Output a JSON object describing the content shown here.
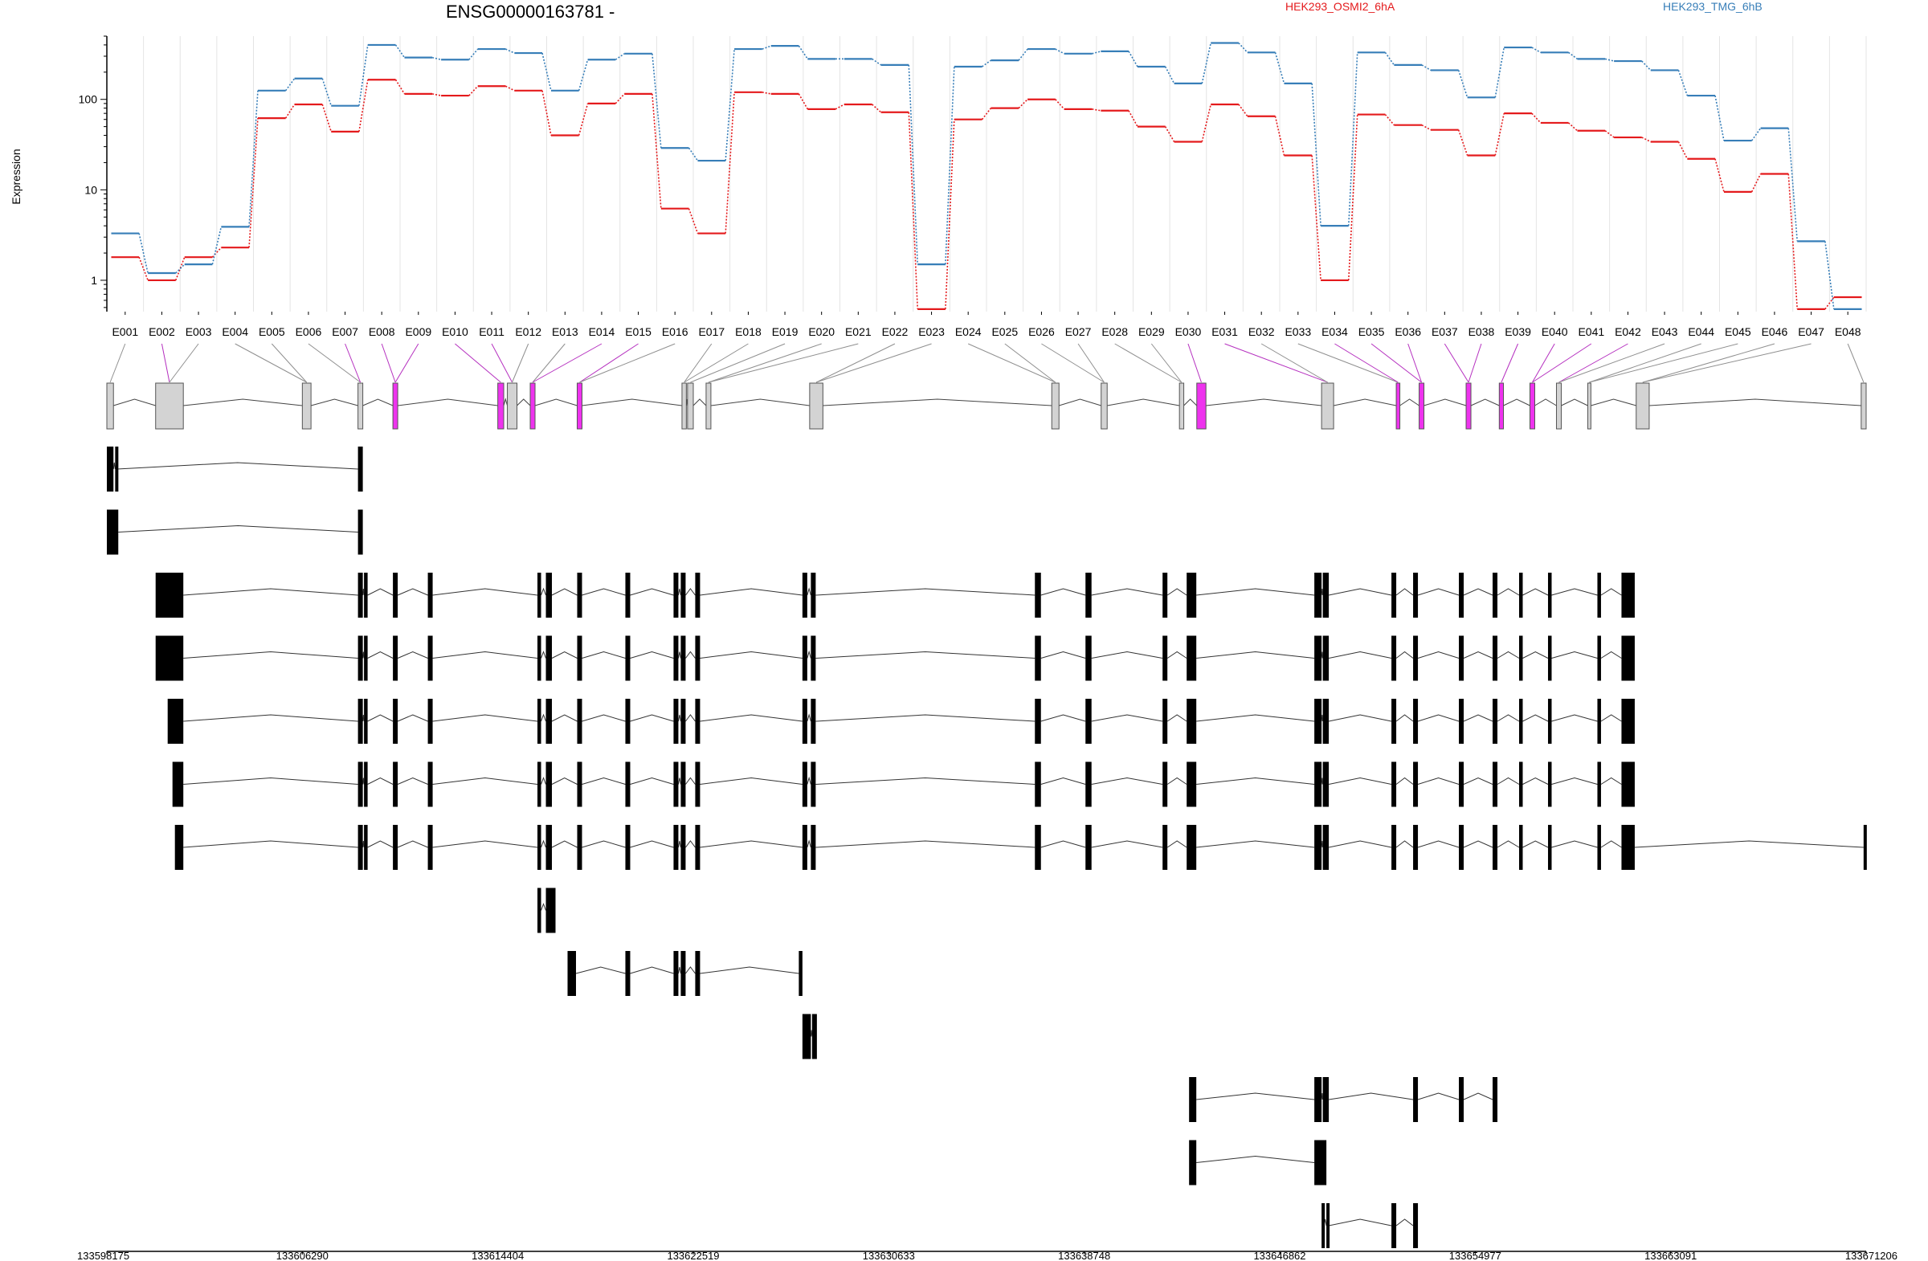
{
  "chart_data": {
    "type": "line",
    "title": "ENSG00000163781 -",
    "ylabel": "Expression",
    "yscale": "log",
    "ylim": [
      0.45,
      500
    ],
    "yticks": [
      1,
      10,
      100
    ],
    "ytick_labels": [
      "1",
      "10",
      "100"
    ],
    "grid": "vertical",
    "legend_position": "top-right",
    "exons": [
      "E001",
      "E002",
      "E003",
      "E004",
      "E005",
      "E006",
      "E007",
      "E008",
      "E009",
      "E010",
      "E011",
      "E012",
      "E013",
      "E014",
      "E015",
      "E016",
      "E017",
      "E018",
      "E019",
      "E020",
      "E021",
      "E022",
      "E023",
      "E024",
      "E025",
      "E026",
      "E027",
      "E028",
      "E029",
      "E030",
      "E031",
      "E032",
      "E033",
      "E034",
      "E035",
      "E036",
      "E037",
      "E038",
      "E039",
      "E040",
      "E041",
      "E042",
      "E043",
      "E044",
      "E045",
      "E046",
      "E047",
      "E048"
    ],
    "series": [
      {
        "name": "HEK293_OSMI2_6hA",
        "color": "#e41a1c",
        "values": [
          1.8,
          1.0,
          1.8,
          2.3,
          62,
          88,
          44,
          165,
          115,
          110,
          140,
          125,
          40,
          90,
          115,
          6.2,
          3.3,
          120,
          115,
          78,
          88,
          72,
          0.48,
          60,
          80,
          100,
          78,
          75,
          50,
          34,
          88,
          65,
          24,
          1.0,
          68,
          52,
          46,
          24,
          70,
          55,
          45,
          38,
          34,
          22,
          9.5,
          15,
          0.48,
          0.65
        ]
      },
      {
        "name": "HEK293_TMG_6hB",
        "color": "#377eb8",
        "values": [
          3.3,
          1.2,
          1.5,
          3.9,
          125,
          170,
          85,
          400,
          290,
          275,
          360,
          325,
          125,
          275,
          320,
          29,
          21,
          360,
          390,
          280,
          280,
          240,
          1.5,
          230,
          270,
          360,
          320,
          340,
          230,
          150,
          420,
          330,
          150,
          4.0,
          330,
          240,
          210,
          105,
          375,
          330,
          280,
          265,
          210,
          110,
          35,
          48,
          2.7,
          0.48
        ]
      }
    ],
    "gene_model": {
      "chrom_start": 133598175,
      "chrom_end": 133671206,
      "exon_intervals": [
        [
          133598175,
          133598450
        ],
        [
          133600200,
          133601350
        ],
        [
          133606290,
          133606650
        ],
        [
          133608600,
          133608800
        ],
        [
          133610050,
          133610250
        ],
        [
          133614404,
          133614650
        ],
        [
          133614800,
          133615200
        ],
        [
          133615750,
          133615950
        ],
        [
          133617700,
          133617900
        ],
        [
          133622050,
          133622230
        ],
        [
          133622280,
          133622519
        ],
        [
          133623050,
          133623250
        ],
        [
          133627350,
          133627900
        ],
        [
          133637400,
          133637700
        ],
        [
          133639450,
          133639700
        ],
        [
          133642700,
          133642880
        ],
        [
          133643420,
          133643800
        ],
        [
          133648600,
          133649100
        ],
        [
          133651700,
          133651850
        ],
        [
          133652650,
          133652850
        ],
        [
          133654600,
          133654800
        ],
        [
          133655977,
          133656150
        ],
        [
          133657250,
          133657450
        ],
        [
          133658350,
          133658550
        ],
        [
          133659650,
          133659780
        ],
        [
          133661660,
          133662200
        ],
        [
          133671000,
          133671206
        ]
      ],
      "exon_bin_highlight": [
        false,
        true,
        false,
        false,
        false,
        false,
        true,
        true,
        true,
        true,
        true,
        false,
        false,
        true,
        true,
        false,
        false,
        false,
        false,
        false,
        false,
        false,
        false,
        false,
        false,
        false,
        false,
        false,
        false,
        true,
        true,
        false,
        false,
        true,
        true,
        true,
        true,
        true,
        true,
        true,
        true,
        true,
        false,
        false,
        false,
        false,
        false,
        false
      ],
      "transcripts": [
        {
          "exons": [
            [
              133598175,
              133598450
            ],
            [
              133598520,
              133598600
            ],
            [
              133608600,
              133608800
            ]
          ]
        },
        {
          "exons": [
            [
              133598175,
              133598650
            ],
            [
              133608600,
              133608800
            ]
          ]
        },
        {
          "exons": [
            [
              133600200,
              133601350
            ],
            [
              133608600,
              133608800
            ],
            [
              133608850,
              133609000
            ],
            [
              133610050,
              133610250
            ],
            [
              133611500,
              133611700
            ],
            [
              133616050,
              133616200
            ],
            [
              133616400,
              133616650
            ],
            [
              133617700,
              133617900
            ],
            [
              133619700,
              133619900
            ],
            [
              133621700,
              133621900
            ],
            [
              133622000,
              133622200
            ],
            [
              133622600,
              133622800
            ],
            [
              133627050,
              133627250
            ],
            [
              133627400,
              133627600
            ],
            [
              133636700,
              133636950
            ],
            [
              133638800,
              133639050
            ],
            [
              133642000,
              133642200
            ],
            [
              133643000,
              133643400
            ],
            [
              133648300,
              133648600
            ],
            [
              133648650,
              133648900
            ],
            [
              133651500,
              133651700
            ],
            [
              133652400,
              133652600
            ],
            [
              133654300,
              133654500
            ],
            [
              133655700,
              133655900
            ],
            [
              133656800,
              133656950
            ],
            [
              133658000,
              133658150
            ],
            [
              133660050,
              133660200
            ],
            [
              133661050,
              133661600
            ]
          ]
        },
        {
          "exons": [
            [
              133600200,
              133601350
            ],
            [
              133608600,
              133608800
            ],
            [
              133608850,
              133609000
            ],
            [
              133610050,
              133610250
            ],
            [
              133611500,
              133611700
            ],
            [
              133616050,
              133616200
            ],
            [
              133616400,
              133616650
            ],
            [
              133617700,
              133617900
            ],
            [
              133619700,
              133619900
            ],
            [
              133621700,
              133621900
            ],
            [
              133622000,
              133622200
            ],
            [
              133622600,
              133622800
            ],
            [
              133627050,
              133627250
            ],
            [
              133627400,
              133627600
            ],
            [
              133636700,
              133636950
            ],
            [
              133638800,
              133639050
            ],
            [
              133642000,
              133642200
            ],
            [
              133643000,
              133643400
            ],
            [
              133648300,
              133648600
            ],
            [
              133648650,
              133648900
            ],
            [
              133651500,
              133651700
            ],
            [
              133652400,
              133652600
            ],
            [
              133654300,
              133654500
            ],
            [
              133655700,
              133655900
            ],
            [
              133656800,
              133656950
            ],
            [
              133658000,
              133658150
            ],
            [
              133660050,
              133660200
            ],
            [
              133661050,
              133661600
            ]
          ]
        },
        {
          "exons": [
            [
              133600700,
              133601350
            ],
            [
              133608600,
              133608800
            ],
            [
              133608850,
              133609000
            ],
            [
              133610050,
              133610250
            ],
            [
              133611500,
              133611700
            ],
            [
              133616050,
              133616200
            ],
            [
              133616400,
              133616650
            ],
            [
              133617700,
              133617900
            ],
            [
              133619700,
              133619900
            ],
            [
              133621700,
              133621900
            ],
            [
              133622000,
              133622200
            ],
            [
              133622600,
              133622800
            ],
            [
              133627050,
              133627250
            ],
            [
              133627400,
              133627600
            ],
            [
              133636700,
              133636950
            ],
            [
              133638800,
              133639050
            ],
            [
              133642000,
              133642200
            ],
            [
              133643000,
              133643400
            ],
            [
              133648300,
              133648600
            ],
            [
              133648650,
              133648900
            ],
            [
              133651500,
              133651700
            ],
            [
              133652400,
              133652600
            ],
            [
              133654300,
              133654500
            ],
            [
              133655700,
              133655900
            ],
            [
              133656800,
              133656950
            ],
            [
              133658000,
              133658150
            ],
            [
              133660050,
              133660200
            ],
            [
              133661050,
              133661600
            ]
          ]
        },
        {
          "exons": [
            [
              133600900,
              133601350
            ],
            [
              133608600,
              133608800
            ],
            [
              133608850,
              133609000
            ],
            [
              133610050,
              133610250
            ],
            [
              133611500,
              133611700
            ],
            [
              133616050,
              133616200
            ],
            [
              133616400,
              133616650
            ],
            [
              133617700,
              133617900
            ],
            [
              133619700,
              133619900
            ],
            [
              133621700,
              133621900
            ],
            [
              133622000,
              133622200
            ],
            [
              133622600,
              133622800
            ],
            [
              133627050,
              133627250
            ],
            [
              133627400,
              133627600
            ],
            [
              133636700,
              133636950
            ],
            [
              133638800,
              133639050
            ],
            [
              133642000,
              133642200
            ],
            [
              133643000,
              133643400
            ],
            [
              133648300,
              133648600
            ],
            [
              133648650,
              133648900
            ],
            [
              133651500,
              133651700
            ],
            [
              133652400,
              133652600
            ],
            [
              133654300,
              133654500
            ],
            [
              133655700,
              133655900
            ],
            [
              133656800,
              133656950
            ],
            [
              133658000,
              133658150
            ],
            [
              133660050,
              133660200
            ],
            [
              133661050,
              133661600
            ]
          ]
        },
        {
          "exons": [
            [
              133601000,
              133601350
            ],
            [
              133608600,
              133608800
            ],
            [
              133608850,
              133609000
            ],
            [
              133610050,
              133610250
            ],
            [
              133611500,
              133611700
            ],
            [
              133616050,
              133616200
            ],
            [
              133616400,
              133616650
            ],
            [
              133617700,
              133617900
            ],
            [
              133619700,
              133619900
            ],
            [
              133621700,
              133621900
            ],
            [
              133622000,
              133622200
            ],
            [
              133622600,
              133622800
            ],
            [
              133627050,
              133627250
            ],
            [
              133627400,
              133627600
            ],
            [
              133636700,
              133636950
            ],
            [
              133638800,
              133639050
            ],
            [
              133642000,
              133642200
            ],
            [
              133643000,
              133643400
            ],
            [
              133648300,
              133648600
            ],
            [
              133648650,
              133648900
            ],
            [
              133651500,
              133651700
            ],
            [
              133652400,
              133652600
            ],
            [
              133654300,
              133654500
            ],
            [
              133655700,
              133655900
            ],
            [
              133656800,
              133656950
            ],
            [
              133658000,
              133658150
            ],
            [
              133660050,
              133660200
            ],
            [
              133661050,
              133661600
            ],
            [
              133671100,
              133671206
            ]
          ]
        },
        {
          "exons": [
            [
              133616050,
              133616200
            ],
            [
              133616400,
              133616800
            ]
          ]
        },
        {
          "exons": [
            [
              133617300,
              133617650
            ],
            [
              133619700,
              133619900
            ],
            [
              133621700,
              133621900
            ],
            [
              133622000,
              133622200
            ],
            [
              133622600,
              133622800
            ],
            [
              133626900,
              133627050
            ]
          ]
        },
        {
          "exons": [
            [
              133627050,
              133627400
            ],
            [
              133627450,
              133627650
            ]
          ]
        },
        {
          "exons": [
            [
              133643100,
              133643400
            ],
            [
              133648300,
              133648600
            ],
            [
              133648650,
              133648900
            ],
            [
              133652400,
              133652600
            ],
            [
              133654300,
              133654500
            ],
            [
              133655700,
              133655900
            ]
          ]
        },
        {
          "exons": [
            [
              133643100,
              133643400
            ],
            [
              133648300,
              133648800
            ]
          ]
        },
        {
          "exons": [
            [
              133648600,
              133648700
            ],
            [
              133648800,
              133648900
            ],
            [
              133651500,
              133651700
            ],
            [
              133652400,
              133652600
            ]
          ]
        }
      ],
      "axis_ticks": [
        133598175,
        133606290,
        133614404,
        133622519,
        133630633,
        133638748,
        133646862,
        133654977,
        133663091,
        133671206
      ],
      "axis_tick_labels": [
        "133598175",
        "133606290",
        "133614404",
        "133622519",
        "133630633",
        "133638748",
        "133646862",
        "133654977",
        "133663091",
        "133671206"
      ]
    }
  }
}
